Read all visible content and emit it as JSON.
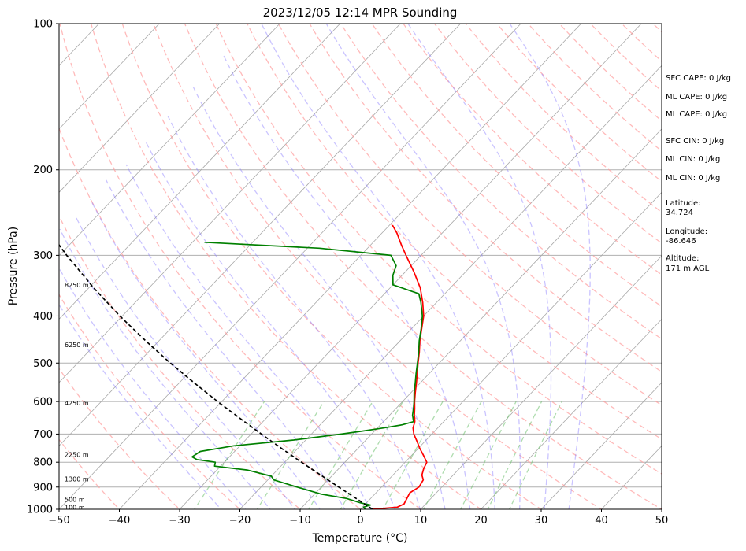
{
  "chart_data": {
    "type": "line",
    "title": "2023/12/05 12:14 MPR Sounding",
    "xlabel": "Temperature (°C)",
    "ylabel": "Pressure (hPa)",
    "xlim": [
      -50,
      50
    ],
    "ylim": [
      1000,
      100
    ],
    "yscale": "log",
    "skew": "skew-T log-p",
    "grid": true,
    "xticks": [
      -50,
      -40,
      -30,
      -20,
      -10,
      0,
      10,
      20,
      30,
      40,
      50
    ],
    "yticks": [
      1000,
      900,
      800,
      700,
      600,
      500,
      400,
      300,
      200,
      100
    ],
    "series": [
      {
        "color": "#ff0000",
        "points": [
          [
            1000,
            2.0
          ],
          [
            990,
            5.8
          ],
          [
            975,
            6.4
          ],
          [
            950,
            6.0
          ],
          [
            925,
            5.6
          ],
          [
            900,
            6.2
          ],
          [
            870,
            5.8
          ],
          [
            850,
            4.8
          ],
          [
            825,
            4.1
          ],
          [
            800,
            3.6
          ],
          [
            775,
            2.0
          ],
          [
            750,
            0.3
          ],
          [
            725,
            -1.3
          ],
          [
            700,
            -3.0
          ],
          [
            680,
            -4.1
          ],
          [
            660,
            -4.8
          ],
          [
            640,
            -5.9
          ],
          [
            620,
            -6.9
          ],
          [
            600,
            -8.0
          ],
          [
            575,
            -9.3
          ],
          [
            550,
            -10.6
          ],
          [
            525,
            -12.0
          ],
          [
            500,
            -13.5
          ],
          [
            475,
            -15.0
          ],
          [
            450,
            -16.7
          ],
          [
            425,
            -18.3
          ],
          [
            400,
            -20.0
          ],
          [
            375,
            -22.3
          ],
          [
            350,
            -25.0
          ],
          [
            325,
            -28.5
          ],
          [
            300,
            -32.5
          ],
          [
            285,
            -35.0
          ],
          [
            270,
            -37.5
          ],
          [
            260,
            -39.5
          ]
        ]
      },
      {
        "color": "#008000",
        "points": [
          [
            1000,
            0.8
          ],
          [
            990,
            0.2
          ],
          [
            980,
            1.0
          ],
          [
            970,
            -1.0
          ],
          [
            950,
            -4.0
          ],
          [
            930,
            -9.0
          ],
          [
            900,
            -14.0
          ],
          [
            870,
            -19.0
          ],
          [
            855,
            -20.0
          ],
          [
            830,
            -25.0
          ],
          [
            815,
            -31.0
          ],
          [
            800,
            -31.5
          ],
          [
            790,
            -35.0
          ],
          [
            780,
            -36.2
          ],
          [
            760,
            -35.7
          ],
          [
            740,
            -31.0
          ],
          [
            720,
            -22.0
          ],
          [
            700,
            -15.0
          ],
          [
            690,
            -12.0
          ],
          [
            680,
            -9.0
          ],
          [
            670,
            -6.4
          ],
          [
            660,
            -5.0
          ],
          [
            640,
            -6.2
          ],
          [
            620,
            -7.1
          ],
          [
            600,
            -8.1
          ],
          [
            575,
            -9.5
          ],
          [
            550,
            -10.8
          ],
          [
            525,
            -12.2
          ],
          [
            500,
            -13.6
          ],
          [
            475,
            -15.1
          ],
          [
            450,
            -16.8
          ],
          [
            425,
            -18.4
          ],
          [
            400,
            -20.2
          ],
          [
            375,
            -22.6
          ],
          [
            360,
            -24.3
          ],
          [
            345,
            -30.0
          ],
          [
            330,
            -31.5
          ],
          [
            315,
            -32.5
          ],
          [
            300,
            -35.0
          ],
          [
            290,
            -48.0
          ],
          [
            282,
            -68.0
          ]
        ]
      },
      {
        "color": "#000000",
        "dashed": true,
        "points": [
          [
            1000,
            2.0
          ],
          [
            950,
            -2.4
          ],
          [
            900,
            -7.1
          ],
          [
            850,
            -12.0
          ],
          [
            800,
            -17.2
          ],
          [
            750,
            -22.6
          ],
          [
            700,
            -28.3
          ],
          [
            650,
            -34.3
          ],
          [
            600,
            -40.7
          ],
          [
            550,
            -47.4
          ],
          [
            500,
            -54.6
          ],
          [
            450,
            -62.2
          ],
          [
            400,
            -70.4
          ],
          [
            350,
            -79.2
          ],
          [
            300,
            -88.8
          ],
          [
            270,
            -95.0
          ]
        ]
      }
    ],
    "height_labels": [
      {
        "text": "100 m",
        "p": 990
      },
      {
        "text": "500 m",
        "p": 954
      },
      {
        "text": "1300 m",
        "p": 866
      },
      {
        "text": "2250 m",
        "p": 772
      },
      {
        "text": "4250 m",
        "p": 604
      },
      {
        "text": "6250 m",
        "p": 458
      },
      {
        "text": "8250 m",
        "p": 345
      }
    ]
  },
  "side_panel": {
    "sfc_cape": "SFC CAPE: 0 J/kg",
    "ml_cape_1": "ML CAPE: 0 J/kg",
    "ml_cape_2": "ML CAPE: 0 J/kg",
    "sfc_cin": "SFC CIN: 0 J/kg",
    "ml_cin_1": "ML CIN: 0 J/kg",
    "ml_cin_2": "ML CIN: 0 J/kg",
    "latitude_label": "Latitude:",
    "latitude_value": "34.724",
    "longitude_label": "Longitude:",
    "longitude_value": "-86.646",
    "altitude_label": "Altitude:",
    "altitude_value": "171 m AGL"
  }
}
